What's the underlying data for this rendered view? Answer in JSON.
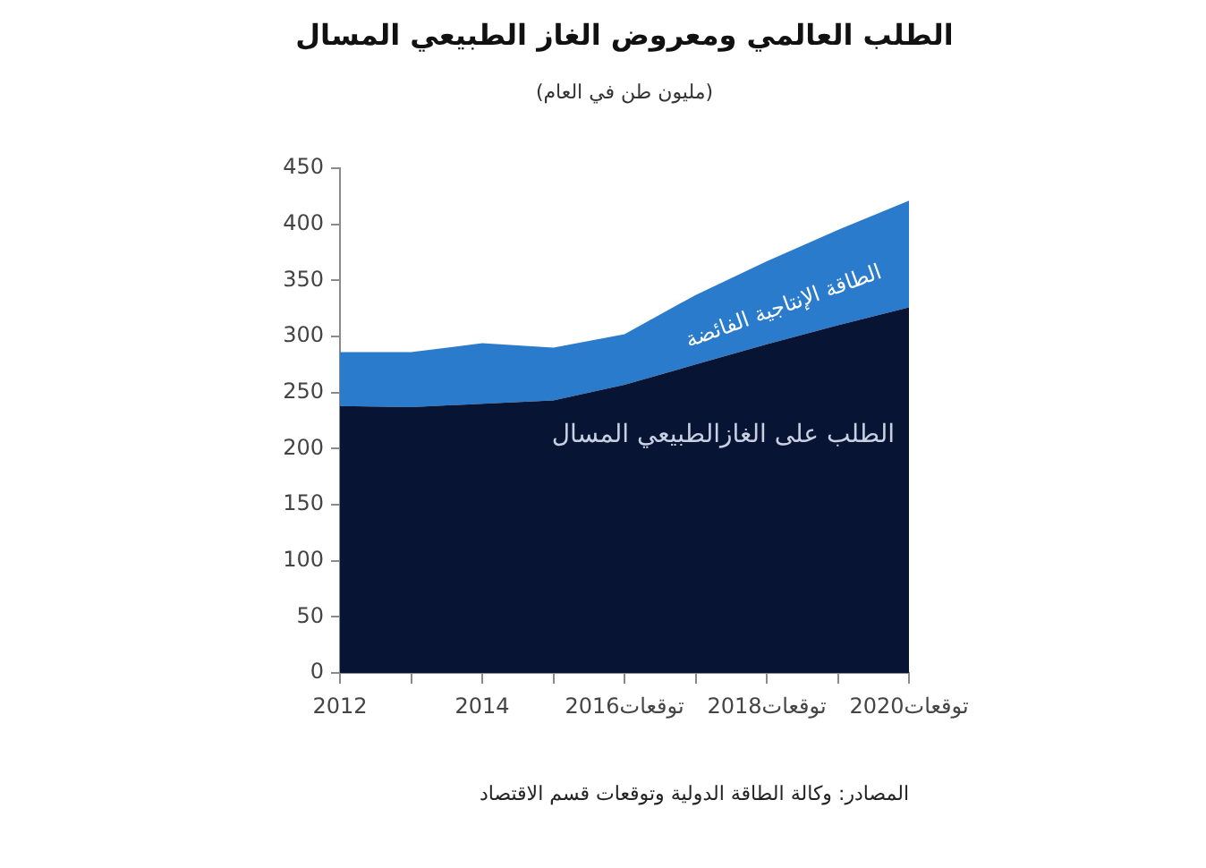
{
  "chart_data": {
    "type": "area",
    "title": "الطلب العالمي ومعروض الغاز الطبيعي المسال",
    "subtitle": "(مليون طن في العام)",
    "annotations": [
      "المصادر: وكالة الطاقة الدولية وتوقعات قسم الاقتصاد"
    ],
    "categories": [
      "2012",
      null,
      "2014",
      null,
      "توقعات2016",
      null,
      "توقعات2018",
      null,
      "توقعات2020"
    ],
    "series": [
      {
        "name": "الطلب على الغازالطبيعي المسال",
        "color": "#071433",
        "values": [
          238,
          237,
          240,
          243,
          257,
          275,
          293,
          310,
          326
        ]
      },
      {
        "name": "الطاقة الإنتاجية الفائضة",
        "color": "#2a7bcb",
        "values": [
          48,
          49,
          54,
          47,
          45,
          62,
          74,
          85,
          95
        ]
      }
    ],
    "stacked": true,
    "ylim": [
      0,
      450
    ],
    "yticks": [
      0,
      50,
      100,
      150,
      200,
      250,
      300,
      350,
      400,
      450
    ]
  }
}
